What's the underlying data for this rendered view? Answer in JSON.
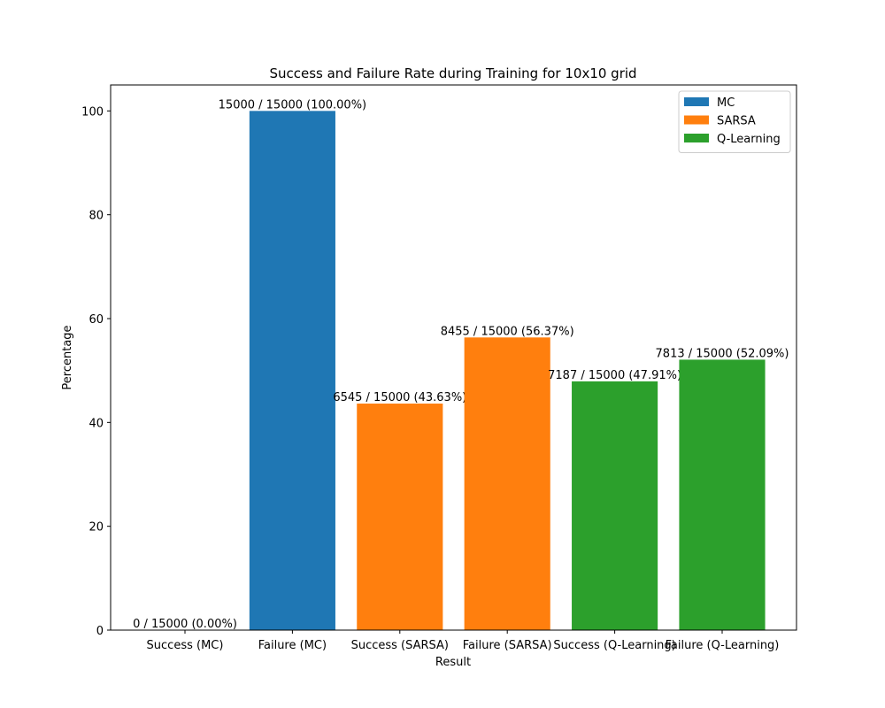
{
  "chart_data": {
    "type": "bar",
    "title": "Success and Failure Rate during Training for 10x10 grid",
    "x_label": "Result",
    "y_label": "Percentage",
    "categories": [
      "Success (MC)",
      "Failure (MC)",
      "Success (SARSA)",
      "Failure (SARSA)",
      "Success (Q-Learning)",
      "Failure (Q-Learning)"
    ],
    "series": [
      {
        "name": "MC",
        "color": "#1f77b4",
        "values": [
          0,
          100,
          null,
          null,
          null,
          null
        ],
        "value_labels": [
          "0 / 15000 (0.00%)",
          "15000 / 15000 (100.00%)",
          null,
          null,
          null,
          null
        ]
      },
      {
        "name": "SARSA",
        "color": "#ff7f0e",
        "values": [
          null,
          null,
          43.63,
          56.37,
          null,
          null
        ],
        "value_labels": [
          null,
          null,
          "6545 / 15000 (43.63%)",
          "8455 / 15000 (56.37%)",
          null,
          null
        ]
      },
      {
        "name": "Q-Learning",
        "color": "#2ca02c",
        "values": [
          null,
          null,
          null,
          null,
          47.91,
          52.09
        ],
        "value_labels": [
          null,
          null,
          null,
          null,
          "7187 / 15000 (47.91%)",
          "7813 / 15000 (52.09%)"
        ]
      }
    ],
    "ylim": [
      0,
      105
    ],
    "yticks": [
      0,
      20,
      40,
      60,
      80,
      100
    ],
    "legend": "upper right",
    "grid": false
  }
}
